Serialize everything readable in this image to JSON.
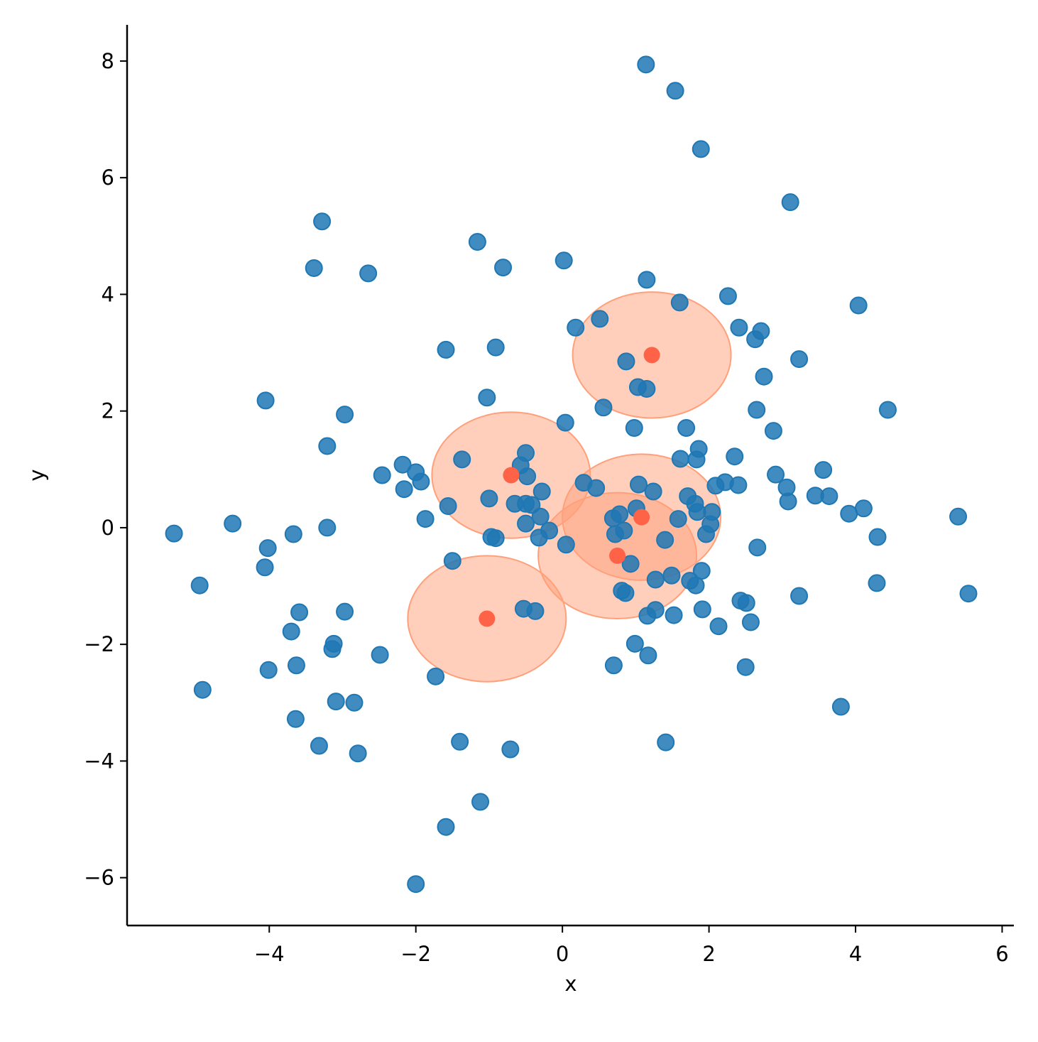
{
  "chart_data": {
    "type": "scatter",
    "xlabel": "x",
    "ylabel": "y",
    "xlim": [
      -5.94,
      6.16
    ],
    "ylim": [
      -6.82,
      8.62
    ],
    "xticks": [
      {
        "value": -4,
        "label": "−4"
      },
      {
        "value": -2,
        "label": "−2"
      },
      0,
      2,
      4,
      6
    ],
    "yticks": [
      {
        "value": -6,
        "label": "−6"
      },
      {
        "value": -4,
        "label": "−4"
      },
      {
        "value": -2,
        "label": "−2"
      },
      0,
      2,
      4,
      6,
      8
    ],
    "series": [
      {
        "color": "#1f77b4",
        "x": [
          1.14,
          1.54,
          1.89,
          3.11,
          -3.28,
          -3.39,
          -2.65,
          -1.16,
          -0.81,
          0.02,
          1.15,
          2.26,
          4.04,
          1.6,
          0.51,
          0.18,
          2.41,
          2.71,
          2.63,
          -1.59,
          -0.91,
          3.23,
          0.87,
          2.75,
          1.03,
          1.15,
          -1.03,
          -4.05,
          0.56,
          2.65,
          4.44,
          -2.97,
          0.04,
          0.98,
          1.69,
          2.88,
          -3.21,
          -1.37,
          -0.5,
          1.86,
          1.61,
          1.83,
          2.35,
          -2.18,
          -0.57,
          3.56,
          -2.46,
          -2.0,
          -1.93,
          -0.48,
          2.91,
          -2.16,
          0.29,
          0.46,
          1.04,
          2.09,
          2.22,
          2.4,
          3.06,
          -0.28,
          1.24,
          3.45,
          3.64,
          1.71,
          -1.0,
          3.08,
          -0.65,
          -0.5,
          -0.42,
          1.81,
          -1.56,
          4.11,
          3.91,
          2.04,
          1.84,
          1.01,
          5.4,
          -0.3,
          0.78,
          0.69,
          1.58,
          -1.87,
          -4.5,
          -3.21,
          -0.5,
          2.02,
          -5.3,
          -3.67,
          -0.18,
          0.84,
          0.72,
          1.96,
          4.3,
          -0.97,
          -0.91,
          -0.32,
          1.4,
          0.05,
          -4.02,
          2.66,
          -4.06,
          0.93,
          -1.5,
          1.9,
          1.49,
          1.27,
          1.74,
          1.82,
          4.29,
          -4.95,
          0.81,
          0.86,
          3.23,
          5.54,
          2.43,
          2.51,
          -0.53,
          -0.37,
          1.91,
          1.27,
          -3.59,
          -2.97,
          1.16,
          1.52,
          2.57,
          2.13,
          -3.7,
          -3.12,
          -3.14,
          0.99,
          -2.49,
          1.17,
          0.7,
          -3.63,
          2.5,
          -4.01,
          -1.73,
          -4.91,
          -3.09,
          -2.84,
          3.8,
          -3.64,
          -3.32,
          -1.4,
          1.41,
          -0.71,
          -2.79,
          -1.12,
          -1.59,
          -2.0
        ],
        "y": [
          7.94,
          7.49,
          6.49,
          5.58,
          5.25,
          4.45,
          4.36,
          4.9,
          4.46,
          4.58,
          4.25,
          3.97,
          3.81,
          3.86,
          3.58,
          3.43,
          3.43,
          3.37,
          3.23,
          3.05,
          3.09,
          2.89,
          2.85,
          2.59,
          2.41,
          2.38,
          2.23,
          2.18,
          2.06,
          2.02,
          2.02,
          1.94,
          1.8,
          1.71,
          1.71,
          1.66,
          1.4,
          1.17,
          1.28,
          1.35,
          1.18,
          1.17,
          1.22,
          1.08,
          1.07,
          0.99,
          0.9,
          0.95,
          0.79,
          0.88,
          0.91,
          0.66,
          0.77,
          0.68,
          0.74,
          0.72,
          0.78,
          0.73,
          0.69,
          0.62,
          0.62,
          0.55,
          0.54,
          0.54,
          0.5,
          0.45,
          0.41,
          0.41,
          0.39,
          0.41,
          0.37,
          0.33,
          0.24,
          0.27,
          0.27,
          0.33,
          0.19,
          0.19,
          0.23,
          0.16,
          0.15,
          0.15,
          0.07,
          0.0,
          0.07,
          0.06,
          -0.1,
          -0.11,
          -0.05,
          -0.05,
          -0.11,
          -0.11,
          -0.16,
          -0.16,
          -0.18,
          -0.17,
          -0.21,
          -0.29,
          -0.35,
          -0.34,
          -0.68,
          -0.62,
          -0.57,
          -0.74,
          -0.82,
          -0.89,
          -0.91,
          -0.99,
          -0.95,
          -0.99,
          -1.08,
          -1.12,
          -1.17,
          -1.13,
          -1.25,
          -1.29,
          -1.39,
          -1.43,
          -1.4,
          -1.41,
          -1.45,
          -1.44,
          -1.51,
          -1.5,
          -1.62,
          -1.69,
          -1.78,
          -1.99,
          -2.08,
          -1.99,
          -2.18,
          -2.19,
          -2.36,
          -2.36,
          -2.39,
          -2.44,
          -2.55,
          -2.78,
          -2.98,
          -3.0,
          -3.07,
          -3.28,
          -3.74,
          -3.67,
          -3.68,
          -3.8,
          -3.87,
          -4.7,
          -5.13,
          -6.11
        ]
      },
      {
        "color": "#ff6347",
        "fill": "#ffa07a",
        "radius": 1.08,
        "x": [
          1.22,
          -0.7,
          1.08,
          0.75,
          -1.03
        ],
        "y": [
          2.96,
          0.9,
          0.18,
          -0.48,
          -1.56
        ]
      }
    ]
  }
}
